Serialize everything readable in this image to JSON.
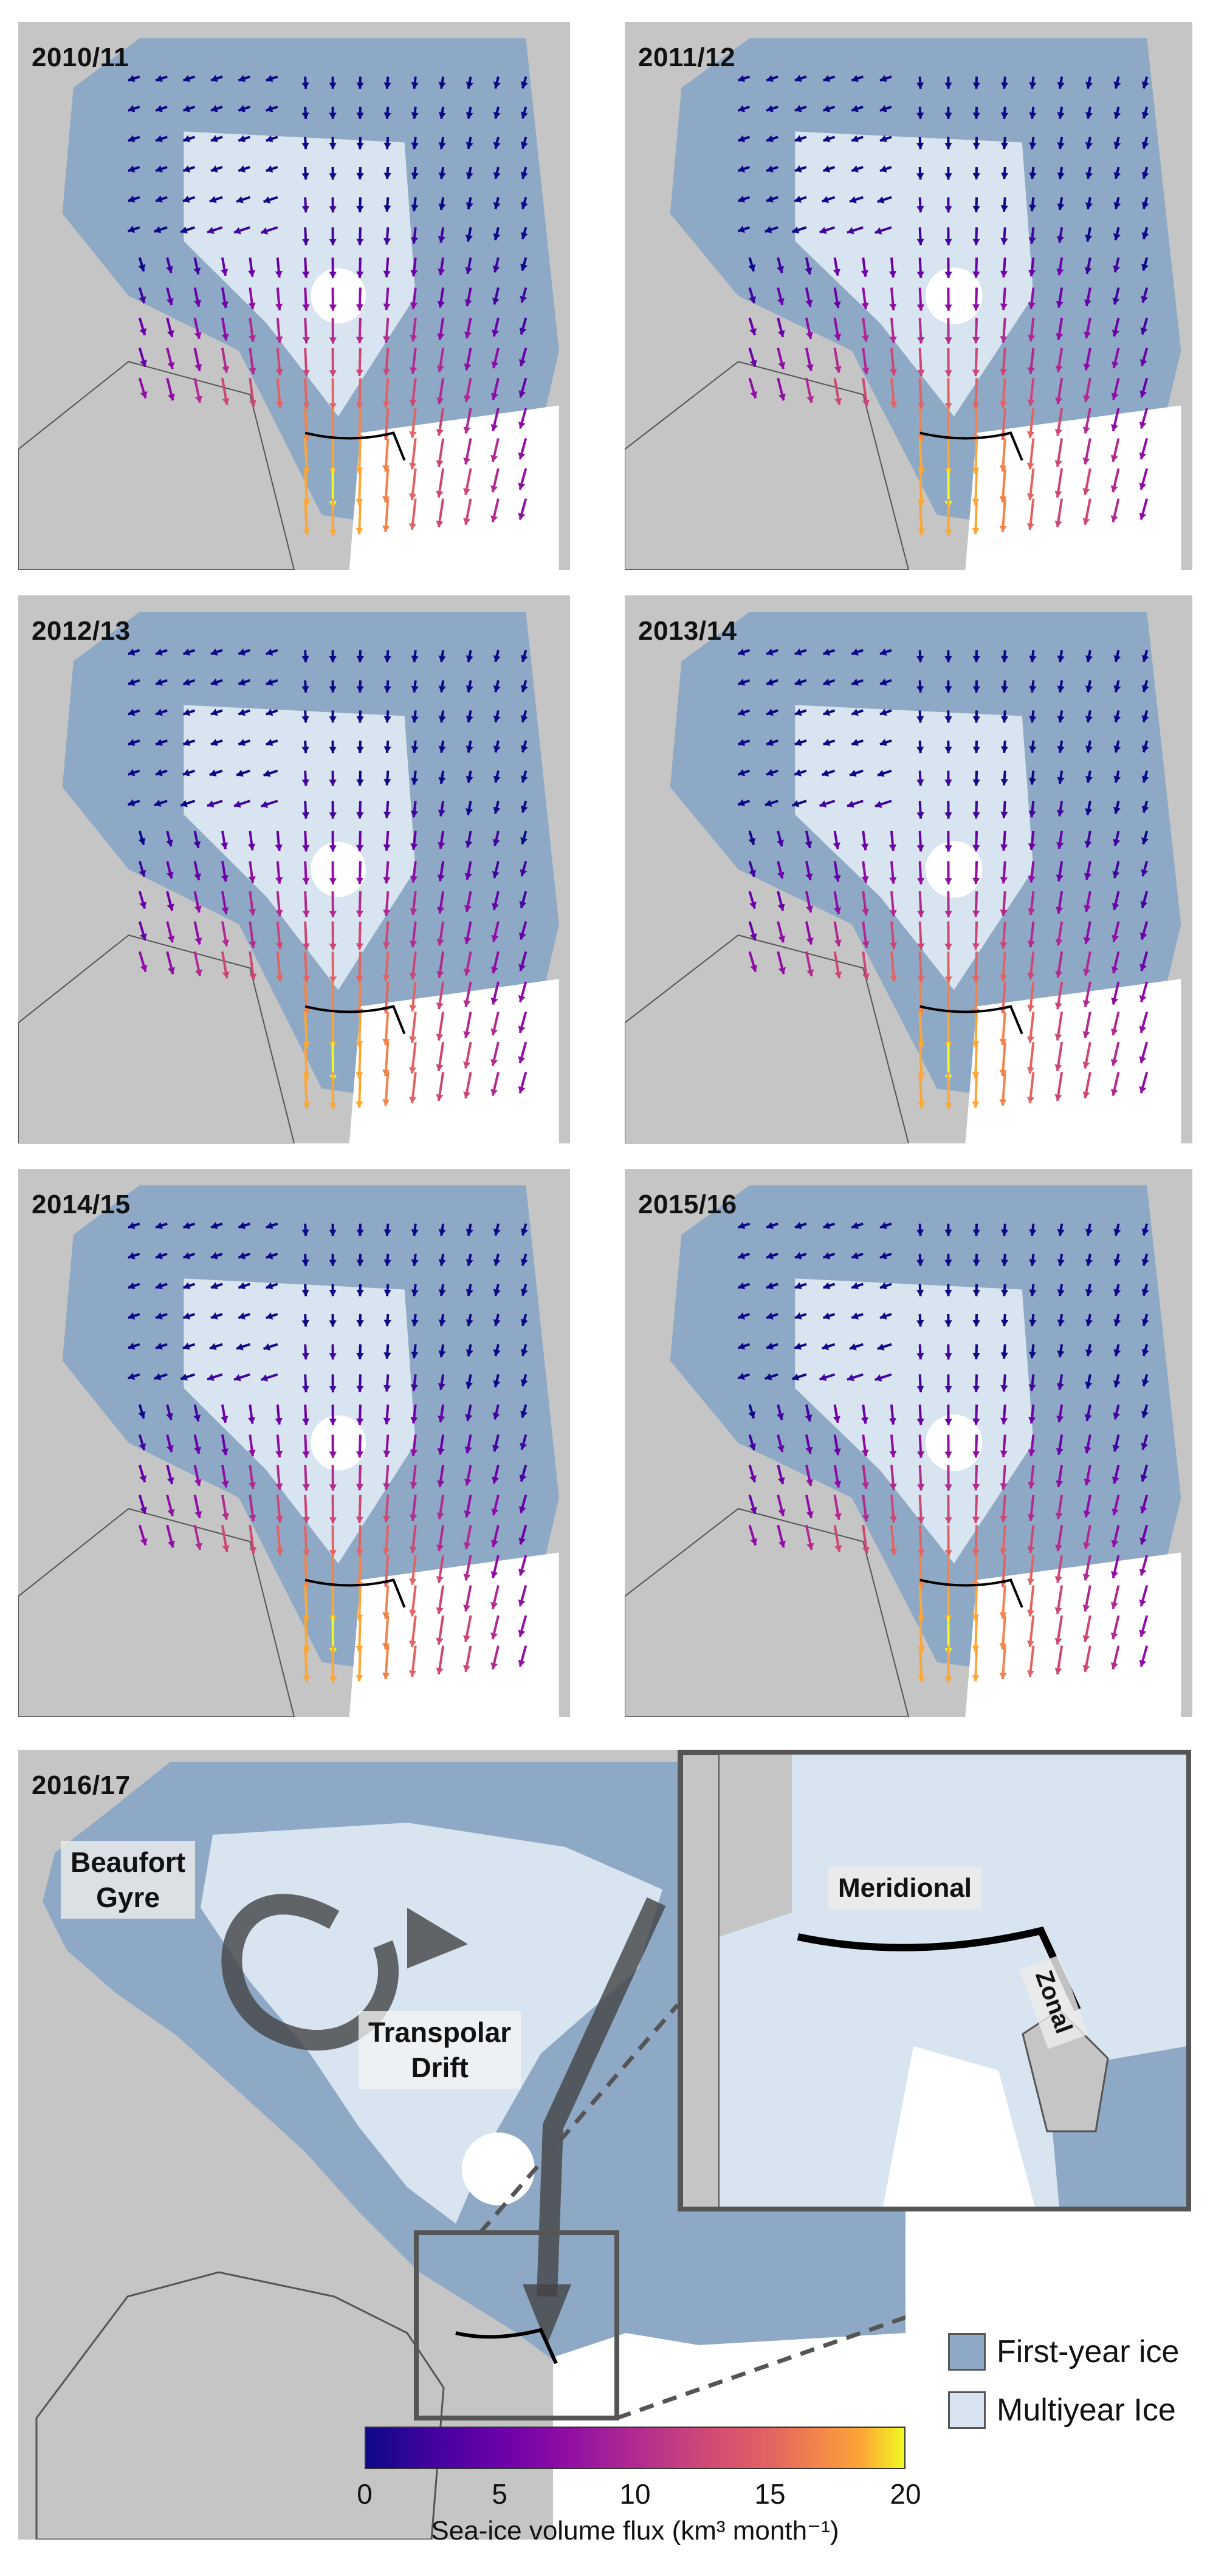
{
  "panels": [
    {
      "year": "2010/11"
    },
    {
      "year": "2011/12"
    },
    {
      "year": "2012/13"
    },
    {
      "year": "2013/14"
    },
    {
      "year": "2014/15"
    },
    {
      "year": "2015/16"
    },
    {
      "year": "2016/17"
    }
  ],
  "annotations": {
    "beaufort": "Beaufort\nGyre",
    "transpolar": "Transpolar\nDrift",
    "meridional": "Meridional",
    "zonal": "Zonal"
  },
  "legend": {
    "first_year": {
      "label": "First-year ice",
      "color": "#8ea9c6"
    },
    "multiyear": {
      "label": "Multiyear Ice",
      "color": "#d8e4ef"
    }
  },
  "colorbar": {
    "ticks": [
      "0",
      "5",
      "10",
      "15",
      "20"
    ],
    "title": "Sea-ice volume flux (km³ month⁻¹)",
    "range": [
      0,
      20
    ],
    "colormap": "plasma"
  },
  "colors": {
    "land": "#c5c5c5",
    "ocean_open": "#ffffff",
    "gate": "#000000"
  }
}
